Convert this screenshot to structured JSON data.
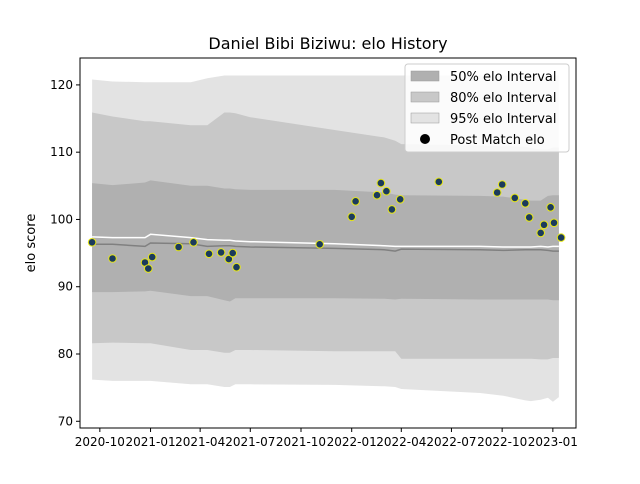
{
  "chart_data": {
    "type": "line",
    "title": "Daniel Bibi Biziwu: elo History",
    "xlabel": "",
    "ylabel": "elo score",
    "xlim": [
      "2020-08-26",
      "2023-02-12"
    ],
    "ylim": [
      69,
      124
    ],
    "x_ticks": [
      "2020-10-01",
      "2021-01-01",
      "2021-04-01",
      "2021-07-01",
      "2021-10-01",
      "2022-01-01",
      "2022-04-01",
      "2022-07-01",
      "2022-10-01",
      "2023-01-01"
    ],
    "x_tick_labels": [
      "2020-10",
      "2021-01",
      "2021-04",
      "2021-07",
      "2021-10",
      "2022-01",
      "2022-04",
      "2022-07",
      "2022-10",
      "2023-01"
    ],
    "y_ticks": [
      70,
      80,
      90,
      100,
      110,
      120
    ],
    "grid": false,
    "legend_position": "upper right",
    "legend": [
      {
        "label": "50% elo Interval",
        "kind": "patch",
        "color": "#b0b0b0"
      },
      {
        "label": "80% elo Interval",
        "kind": "patch",
        "color": "#c8c8c8"
      },
      {
        "label": "95% elo Interval",
        "kind": "patch",
        "color": "#e3e3e3"
      },
      {
        "label": "Post Match elo",
        "kind": "marker",
        "color": "#000000"
      }
    ],
    "colors": {
      "band50": "#b0b0b0",
      "band80": "#c8c8c8",
      "band95": "#e3e3e3",
      "mean_line": "#808080",
      "upper_line": "#ffffff",
      "point_fill": "#1b3b5c",
      "point_edge": "#e6e619"
    },
    "bands": {
      "dates": [
        "2020-09-17",
        "2020-10-24",
        "2020-12-22",
        "2021-01-01",
        "2021-03-15",
        "2021-04-14",
        "2021-05-15",
        "2021-05-25",
        "2021-06-04",
        "2021-07-01",
        "2021-12-01",
        "2022-03-01",
        "2022-03-21",
        "2022-04-01",
        "2022-08-22",
        "2022-10-03",
        "2022-11-12",
        "2022-11-22",
        "2022-12-10",
        "2022-12-23",
        "2023-01-01",
        "2023-01-12"
      ],
      "p95_upper": [
        120.8,
        120.5,
        120.4,
        120.4,
        120.4,
        121.0,
        121.4,
        121.4,
        121.4,
        121.4,
        121.4,
        121.4,
        121.4,
        121.4,
        121.4,
        121.4,
        121.4,
        121.4,
        121.4,
        121.4,
        121.4,
        121.4
      ],
      "p80_upper": [
        115.9,
        115.3,
        114.6,
        114.6,
        114.0,
        114.0,
        115.9,
        115.9,
        115.8,
        115.2,
        113.3,
        112.2,
        111.7,
        111.2,
        111.0,
        110.9,
        110.8,
        110.6,
        110.4,
        110.4,
        110.7,
        110.7
      ],
      "p50_upper": [
        105.4,
        105.1,
        105.5,
        105.8,
        105.0,
        105.0,
        104.6,
        104.6,
        104.5,
        104.4,
        104.4,
        104.0,
        103.7,
        103.6,
        103.5,
        103.4,
        102.9,
        102.8,
        102.8,
        103.5,
        103.6,
        103.6
      ],
      "mean": [
        96.3,
        96.3,
        96.0,
        96.5,
        96.4,
        96.0,
        96.1,
        96.1,
        96.0,
        95.9,
        95.7,
        95.5,
        95.3,
        95.6,
        95.5,
        95.4,
        95.5,
        95.5,
        95.5,
        95.4,
        95.3,
        95.3
      ],
      "white_line": [
        97.4,
        97.3,
        97.3,
        97.8,
        97.3,
        97.0,
        96.9,
        96.9,
        96.8,
        96.7,
        96.4,
        96.1,
        96.0,
        96.0,
        96.0,
        95.9,
        95.9,
        95.9,
        96.0,
        95.9,
        96.0,
        96.0
      ],
      "p50_lower": [
        89.2,
        89.2,
        89.3,
        89.4,
        88.6,
        88.6,
        88.0,
        87.8,
        88.3,
        88.3,
        88.3,
        88.2,
        88.1,
        88.2,
        88.1,
        88.1,
        88.1,
        88.1,
        88.1,
        88.1,
        88.0,
        88.0
      ],
      "p80_lower": [
        81.6,
        81.7,
        81.6,
        81.6,
        80.6,
        80.6,
        80.2,
        80.2,
        80.6,
        80.6,
        80.4,
        80.4,
        80.4,
        79.3,
        79.3,
        79.3,
        79.3,
        79.3,
        79.2,
        79.2,
        79.4,
        79.4
      ],
      "p95_lower": [
        76.2,
        76.0,
        76.0,
        76.0,
        75.5,
        75.5,
        75.1,
        75.1,
        75.5,
        75.5,
        75.4,
        75.2,
        75.1,
        74.8,
        74.2,
        73.8,
        73.1,
        73.0,
        73.2,
        73.5,
        72.9,
        73.6
      ]
    },
    "points": [
      {
        "x": "2020-09-17",
        "y": 96.6
      },
      {
        "x": "2020-10-24",
        "y": 94.2
      },
      {
        "x": "2020-12-22",
        "y": 93.6
      },
      {
        "x": "2020-12-28",
        "y": 92.7
      },
      {
        "x": "2021-01-04",
        "y": 94.4
      },
      {
        "x": "2021-02-21",
        "y": 95.9
      },
      {
        "x": "2021-03-20",
        "y": 96.6
      },
      {
        "x": "2021-04-17",
        "y": 94.9
      },
      {
        "x": "2021-05-09",
        "y": 95.1
      },
      {
        "x": "2021-05-23",
        "y": 94.1
      },
      {
        "x": "2021-05-30",
        "y": 95.0
      },
      {
        "x": "2021-06-06",
        "y": 92.9
      },
      {
        "x": "2021-11-04",
        "y": 96.3
      },
      {
        "x": "2022-01-01",
        "y": 100.4
      },
      {
        "x": "2022-01-08",
        "y": 102.7
      },
      {
        "x": "2022-02-16",
        "y": 103.6
      },
      {
        "x": "2022-02-23",
        "y": 105.4
      },
      {
        "x": "2022-03-05",
        "y": 104.2
      },
      {
        "x": "2022-03-15",
        "y": 101.5
      },
      {
        "x": "2022-03-30",
        "y": 103.0
      },
      {
        "x": "2022-06-08",
        "y": 105.6
      },
      {
        "x": "2022-09-22",
        "y": 104.0
      },
      {
        "x": "2022-10-01",
        "y": 105.2
      },
      {
        "x": "2022-10-24",
        "y": 103.2
      },
      {
        "x": "2022-11-12",
        "y": 102.4
      },
      {
        "x": "2022-11-19",
        "y": 100.3
      },
      {
        "x": "2022-12-10",
        "y": 98.0
      },
      {
        "x": "2022-12-16",
        "y": 99.2
      },
      {
        "x": "2022-12-28",
        "y": 101.8
      },
      {
        "x": "2023-01-03",
        "y": 99.5
      },
      {
        "x": "2023-01-16",
        "y": 97.3
      }
    ]
  }
}
